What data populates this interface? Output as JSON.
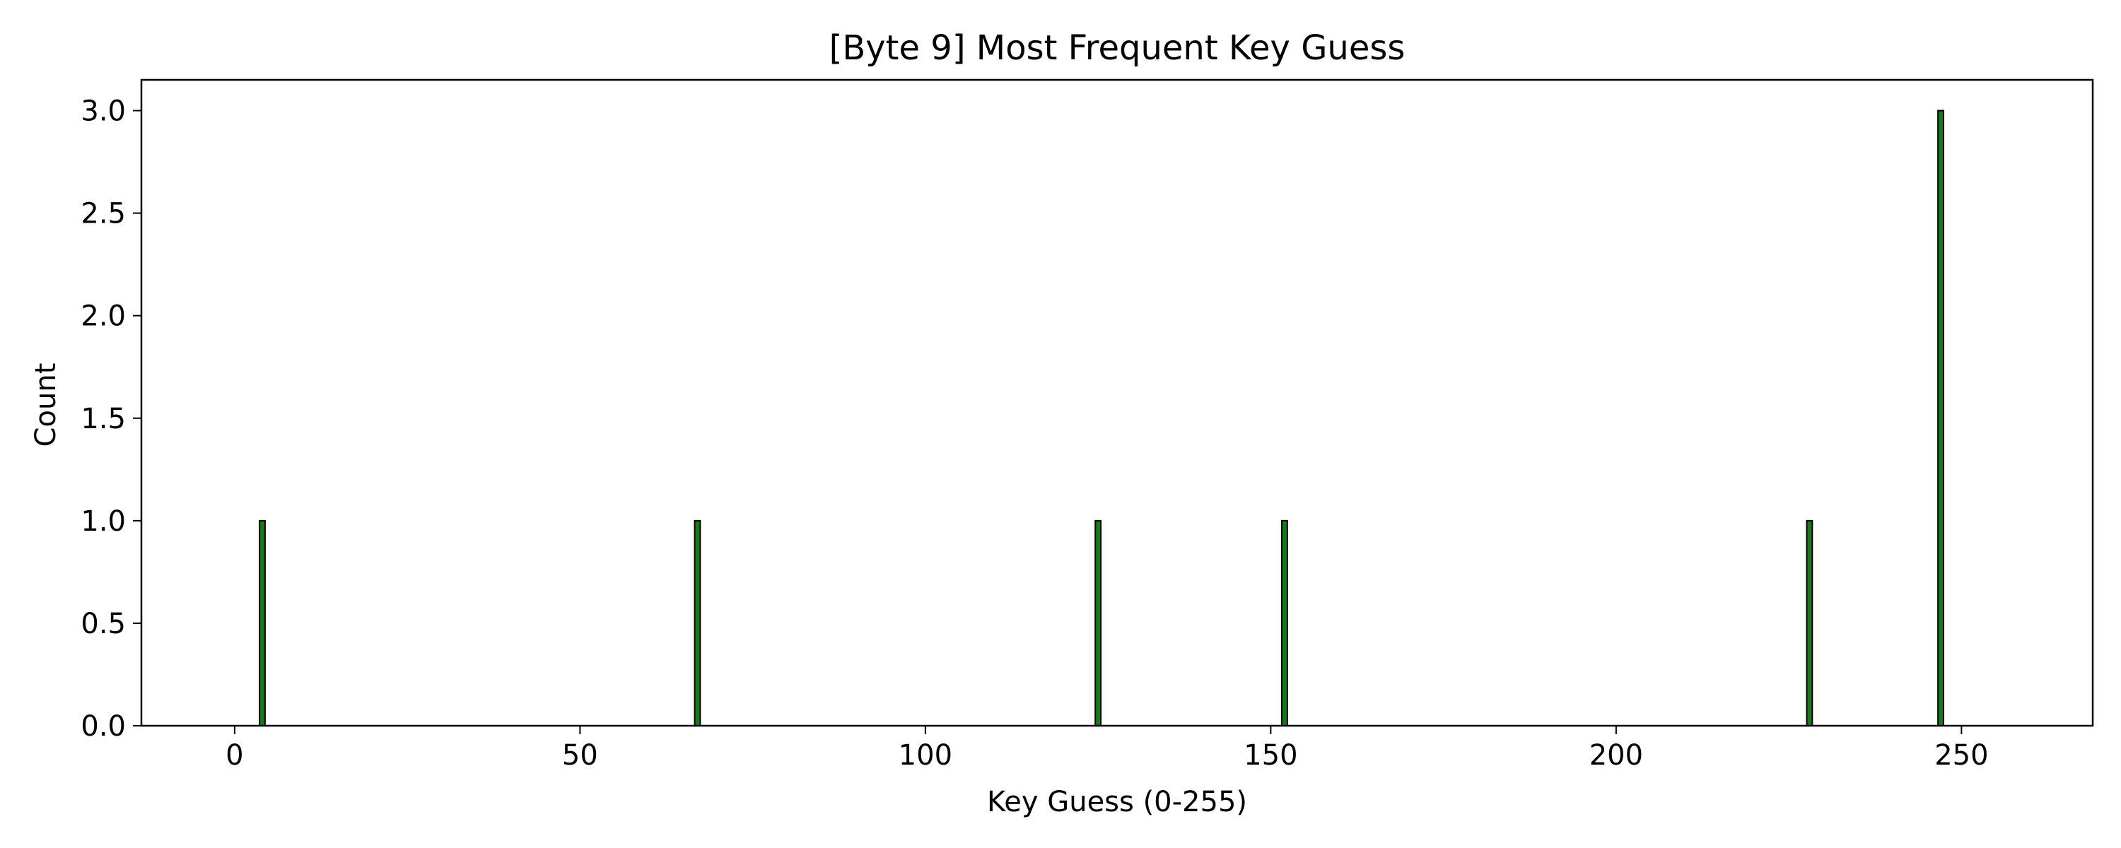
{
  "chart_data": {
    "type": "bar",
    "title": "[Byte 9] Most Frequent Key Guess",
    "xlabel": "Key Guess (0-255)",
    "ylabel": "Count",
    "xlim": [
      -13.5,
      269
    ],
    "ylim": [
      0,
      3.15
    ],
    "x_ticks": [
      0,
      50,
      100,
      150,
      200,
      250
    ],
    "y_ticks": [
      0.0,
      0.5,
      1.0,
      1.5,
      2.0,
      2.5,
      3.0
    ],
    "x_tick_labels": [
      "0",
      "50",
      "100",
      "150",
      "200",
      "250"
    ],
    "y_tick_labels": [
      "0.0",
      "0.5",
      "1.0",
      "1.5",
      "2.0",
      "2.5",
      "3.0"
    ],
    "bar_color": "#1a7a1a",
    "edge_color": "#000000",
    "x_range": [
      0,
      255
    ],
    "nonzero_bars": [
      {
        "x": 4,
        "value": 1
      },
      {
        "x": 67,
        "value": 1
      },
      {
        "x": 125,
        "value": 1
      },
      {
        "x": 152,
        "value": 1
      },
      {
        "x": 228,
        "value": 1
      },
      {
        "x": 247,
        "value": 3
      }
    ],
    "grid": false,
    "legend": "none"
  }
}
